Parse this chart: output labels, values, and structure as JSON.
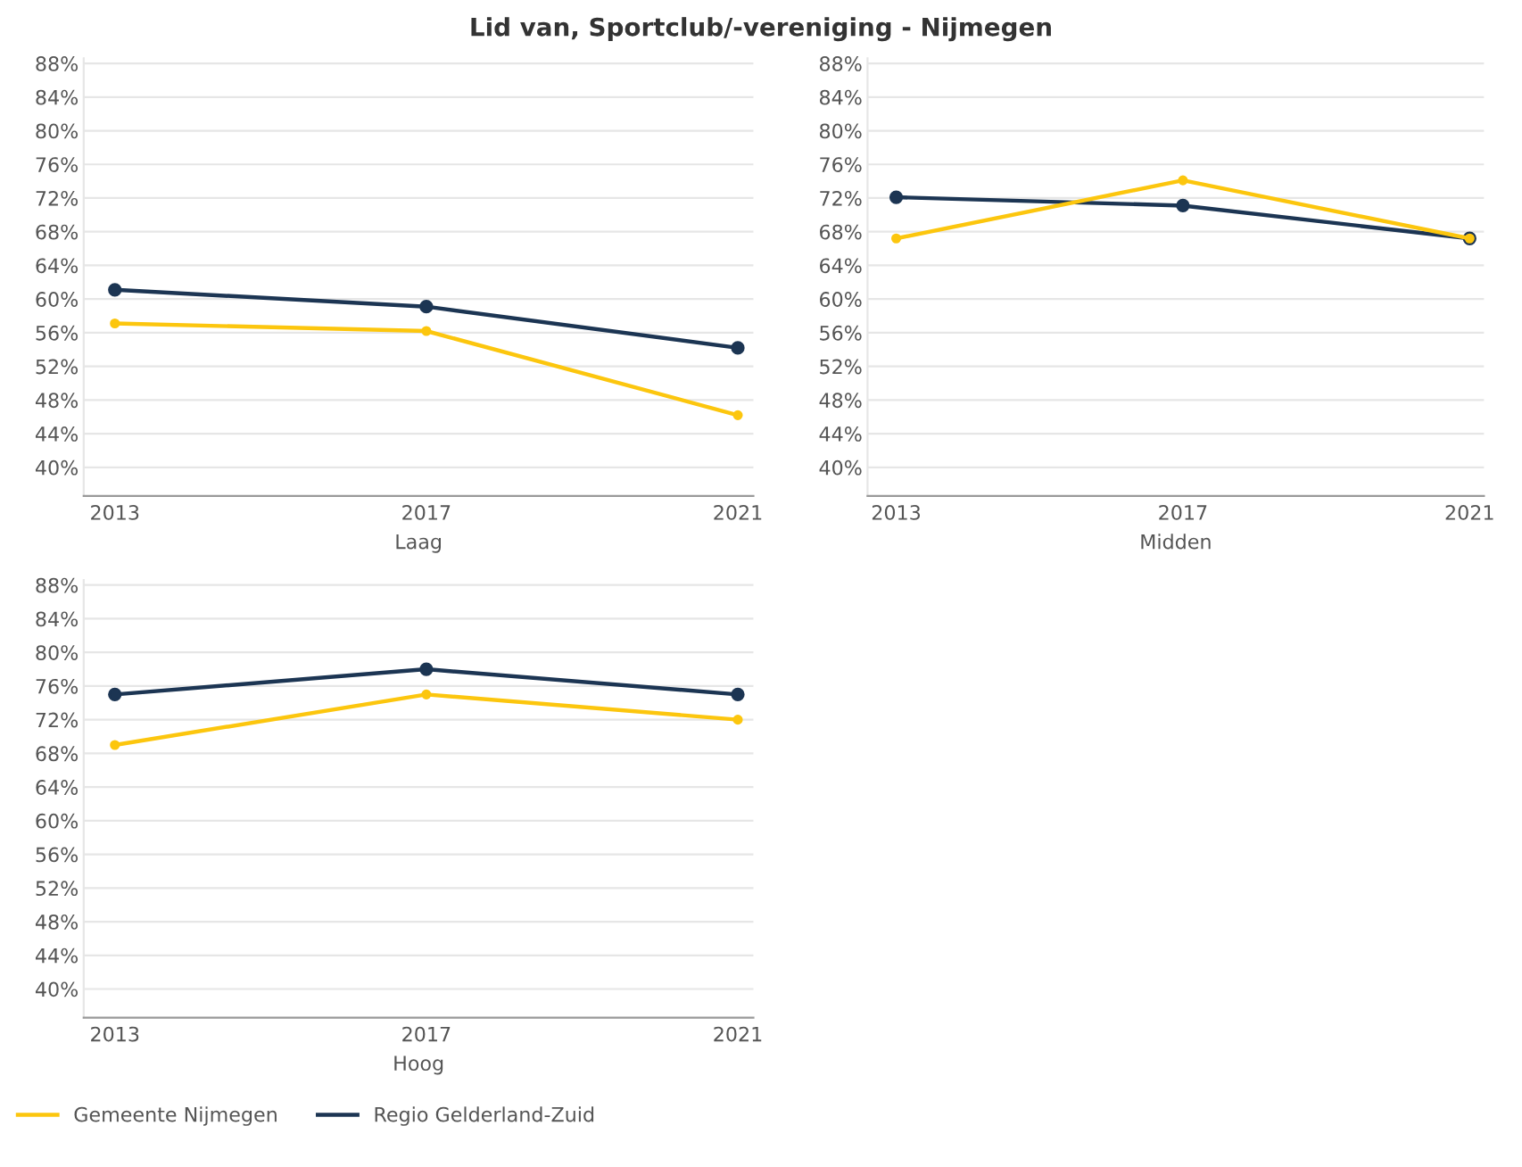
{
  "chart_data": [
    {
      "type": "line",
      "title": "Lid van, Sportclub/-vereniging - Nijmegen",
      "legend": "bottom",
      "xlabel": "Laag",
      "categories": [
        "2013",
        "2017",
        "2021"
      ],
      "ylim": [
        36.6,
        88.6
      ],
      "yticks": [
        {
          "value": 40,
          "label": "40%"
        },
        {
          "value": 44,
          "label": "44%"
        },
        {
          "value": 48,
          "label": "48%"
        },
        {
          "value": 52,
          "label": "52%"
        },
        {
          "value": 56,
          "label": "56%"
        },
        {
          "value": 60,
          "label": "60%"
        },
        {
          "value": 64,
          "label": "64%"
        },
        {
          "value": 68,
          "label": "68%"
        },
        {
          "value": 72,
          "label": "72%"
        },
        {
          "value": 76,
          "label": "76%"
        },
        {
          "value": 80,
          "label": "80%"
        },
        {
          "value": 84,
          "label": "84%"
        },
        {
          "value": 88,
          "label": "88%"
        }
      ],
      "grid": "y",
      "marker": "circle",
      "line_style": "solid",
      "series": [
        {
          "name": "Gemeente Nijmegen",
          "color": "#fcc60e",
          "values": [
            57.1,
            56.2,
            46.2
          ]
        },
        {
          "name": "Regio Gelderland-Zuid",
          "color": "#1c3553",
          "values": [
            61.1,
            59.1,
            54.2
          ]
        }
      ]
    },
    {
      "type": "line",
      "xlabel": "Midden",
      "categories": [
        "2013",
        "2017",
        "2021"
      ],
      "ylim": [
        36.6,
        88.6
      ],
      "yticks": [
        {
          "value": 40,
          "label": "40%"
        },
        {
          "value": 44,
          "label": "44%"
        },
        {
          "value": 48,
          "label": "48%"
        },
        {
          "value": 52,
          "label": "52%"
        },
        {
          "value": 56,
          "label": "56%"
        },
        {
          "value": 60,
          "label": "60%"
        },
        {
          "value": 64,
          "label": "64%"
        },
        {
          "value": 68,
          "label": "68%"
        },
        {
          "value": 72,
          "label": "72%"
        },
        {
          "value": 76,
          "label": "76%"
        },
        {
          "value": 80,
          "label": "80%"
        },
        {
          "value": 84,
          "label": "84%"
        },
        {
          "value": 88,
          "label": "88%"
        }
      ],
      "grid": "y",
      "marker": "circle",
      "line_style": "solid",
      "series": [
        {
          "color": "#fcc60e",
          "values": [
            67.2,
            74.1,
            67.2
          ]
        },
        {
          "color": "#1c3553",
          "values": [
            72.1,
            71.1,
            67.2
          ]
        }
      ]
    },
    {
      "type": "line",
      "xlabel": "Hoog",
      "categories": [
        "2013",
        "2017",
        "2021"
      ],
      "ylim": [
        36.6,
        88.6
      ],
      "yticks": [
        {
          "value": 40,
          "label": "40%"
        },
        {
          "value": 44,
          "label": "44%"
        },
        {
          "value": 48,
          "label": "48%"
        },
        {
          "value": 52,
          "label": "52%"
        },
        {
          "value": 56,
          "label": "56%"
        },
        {
          "value": 60,
          "label": "60%"
        },
        {
          "value": 64,
          "label": "64%"
        },
        {
          "value": 68,
          "label": "68%"
        },
        {
          "value": 72,
          "label": "72%"
        },
        {
          "value": 76,
          "label": "76%"
        },
        {
          "value": 80,
          "label": "80%"
        },
        {
          "value": 84,
          "label": "84%"
        },
        {
          "value": 88,
          "label": "88%"
        }
      ],
      "grid": "y",
      "marker": "circle",
      "line_style": "solid",
      "series": [
        {
          "color": "#fcc60e",
          "values": [
            69.0,
            75.0,
            72.0
          ]
        },
        {
          "color": "#1c3553",
          "values": [
            75.0,
            78.0,
            75.0
          ]
        }
      ]
    }
  ]
}
